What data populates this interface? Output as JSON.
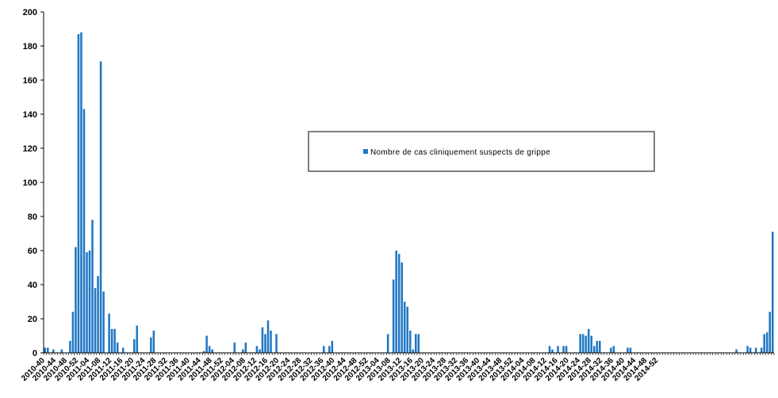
{
  "chart_data": {
    "type": "bar",
    "title": "",
    "xlabel": "",
    "ylabel": "",
    "ylim": [
      0,
      200
    ],
    "yticks": [
      0,
      20,
      40,
      60,
      80,
      100,
      120,
      140,
      160,
      180,
      200
    ],
    "grid": false,
    "legend_placement": "center",
    "bar_color": "#1f77c4",
    "x_tick_labels": [
      "2010-40",
      "2010-44",
      "2010-48",
      "2010-52",
      "2011-04",
      "2011-08",
      "2011-12",
      "2011-16",
      "2011-20",
      "2011-24",
      "2011-28",
      "2011-32",
      "2011-36",
      "2011-40",
      "2011-44",
      "2011-48",
      "2011-52",
      "2012-04",
      "2012-08",
      "2012-12",
      "2012-16",
      "2012-20",
      "2012-24",
      "2012-28",
      "2012-32",
      "2012-36",
      "2012-40",
      "2012-44",
      "2012-48",
      "2012-52",
      "2013-04",
      "2013-08",
      "2013-12",
      "2013-16",
      "2013-20",
      "2013-24",
      "2013-28",
      "2013-32",
      "2013-36",
      "2013-40",
      "2013-44",
      "2013-48",
      "2013-52",
      "2014-04",
      "2014-08",
      "2014-12",
      "2014-16",
      "2014-20",
      "2014-24",
      "2014-28",
      "2014-32",
      "2014-36",
      "2014-40",
      "2014-44",
      "2014-48",
      "2014-52"
    ],
    "series": [
      {
        "name": "Nombre de cas cliniquement suspects de grippe",
        "values": [
          3,
          3,
          0,
          2,
          0,
          0,
          2,
          0,
          0,
          7,
          24,
          62,
          187,
          188,
          143,
          59,
          60,
          78,
          38,
          45,
          171,
          36,
          0,
          23,
          14,
          14,
          6,
          0,
          3,
          0,
          0,
          0,
          8,
          16,
          0,
          0,
          0,
          0,
          9,
          13,
          0,
          0,
          0,
          0,
          0,
          0,
          0,
          0,
          0,
          0,
          0,
          0,
          0,
          0,
          0,
          0,
          0,
          1,
          10,
          4,
          2,
          0,
          0,
          0,
          0,
          0,
          0,
          0,
          6,
          0,
          0,
          2,
          6,
          0,
          0,
          0,
          4,
          2,
          15,
          11,
          19,
          13,
          0,
          11,
          0,
          0,
          0,
          0,
          0,
          0,
          0,
          0,
          0,
          0,
          0,
          0,
          0,
          0,
          0,
          0,
          4,
          0,
          4,
          7,
          0,
          0,
          0,
          0,
          0,
          0,
          0,
          0,
          0,
          0,
          0,
          0,
          0,
          0,
          0,
          0,
          0,
          0,
          0,
          11,
          0,
          43,
          60,
          58,
          53,
          30,
          27,
          13,
          2,
          11,
          11,
          0,
          0,
          0,
          0,
          0,
          0,
          0,
          0,
          0,
          0,
          0,
          0,
          0,
          0,
          0,
          0,
          0,
          0,
          0,
          0,
          0,
          0,
          0,
          0,
          0,
          0,
          0,
          0,
          0,
          0,
          0,
          0,
          0,
          0,
          0,
          0,
          0,
          0,
          0,
          0,
          0,
          0,
          0,
          0,
          0,
          0,
          4,
          2,
          0,
          4,
          0,
          4,
          4,
          0,
          0,
          0,
          0,
          11,
          11,
          10,
          14,
          10,
          4,
          7,
          7,
          0,
          0,
          0,
          3,
          4,
          0,
          0,
          0,
          0,
          3,
          3,
          0,
          0,
          0,
          0,
          0,
          0,
          0,
          0,
          0,
          0,
          0,
          0,
          0,
          0,
          0,
          0,
          0,
          0,
          0,
          0,
          0,
          0,
          0,
          0,
          0,
          0,
          0,
          0,
          0,
          0,
          0,
          0,
          0,
          0,
          0,
          0,
          0,
          2,
          0,
          0,
          0,
          4,
          3,
          0,
          3,
          0,
          3,
          11,
          12,
          24,
          71
        ]
      }
    ]
  }
}
